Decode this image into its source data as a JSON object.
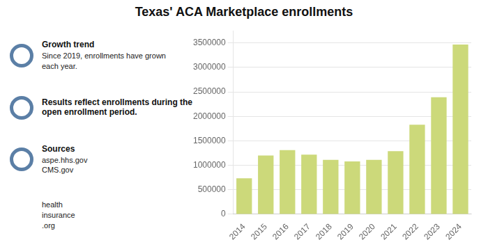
{
  "chart_data": {
    "type": "bar",
    "title": "Texas' ACA Marketplace enrollments",
    "categories": [
      "2014",
      "2015",
      "2016",
      "2017",
      "2018",
      "2019",
      "2020",
      "2021",
      "2022",
      "2023",
      "2024"
    ],
    "values": [
      735000,
      1200000,
      1310000,
      1220000,
      1110000,
      1080000,
      1110000,
      1290000,
      1830000,
      2390000,
      3470000
    ],
    "color": "#ccd97a",
    "ylim": [
      0,
      3750000
    ],
    "yticks": [
      0,
      500000,
      1000000,
      1500000,
      2000000,
      2500000,
      3000000,
      3500000
    ],
    "grid": true,
    "annotations": [
      {
        "bold": "Growth trend",
        "text": "Since 2019, enrollments have grown\neach year."
      },
      {
        "bold": "Results reflect enrollments during the\nopen enrollment period."
      },
      {
        "bold": "Sources",
        "text": "aspe.hhs.gov\nCMS.gov"
      },
      {
        "text": "health\ninsurance\n.org"
      }
    ]
  }
}
